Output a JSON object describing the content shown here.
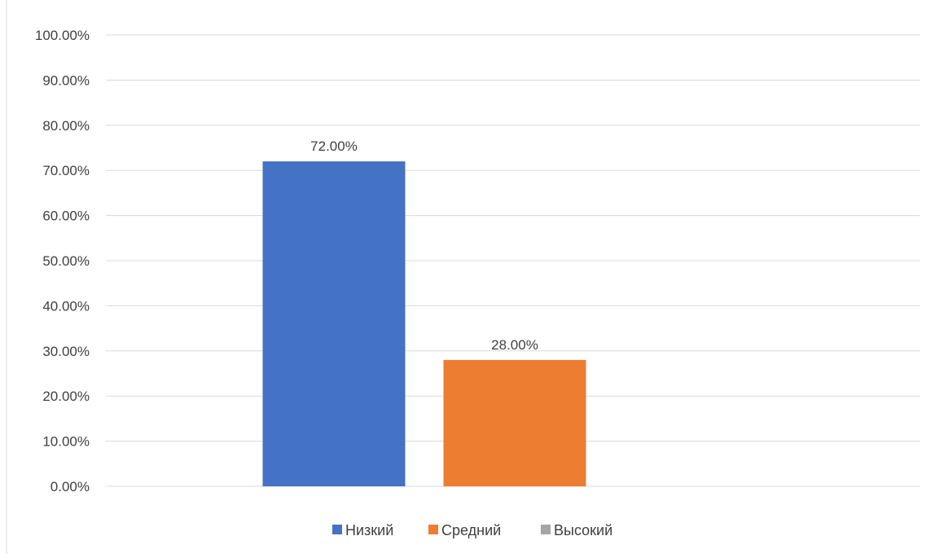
{
  "chart_data": {
    "type": "bar",
    "title": "",
    "xlabel": "",
    "ylabel": "",
    "ylim": [
      0,
      100
    ],
    "y_ticks": [
      "0.00%",
      "10.00%",
      "20.00%",
      "30.00%",
      "40.00%",
      "50.00%",
      "60.00%",
      "70.00%",
      "80.00%",
      "90.00%",
      "100.00%"
    ],
    "grid": true,
    "legend_position": "bottom",
    "series": [
      {
        "name": "Низкий",
        "value": 72,
        "label": "72.00%",
        "color": "#4472C4"
      },
      {
        "name": "Средний",
        "value": 28,
        "label": "28.00%",
        "color": "#ED7D31"
      },
      {
        "name": "Высокий",
        "value": 0,
        "label": "",
        "color": "#A5A5A5"
      }
    ]
  }
}
